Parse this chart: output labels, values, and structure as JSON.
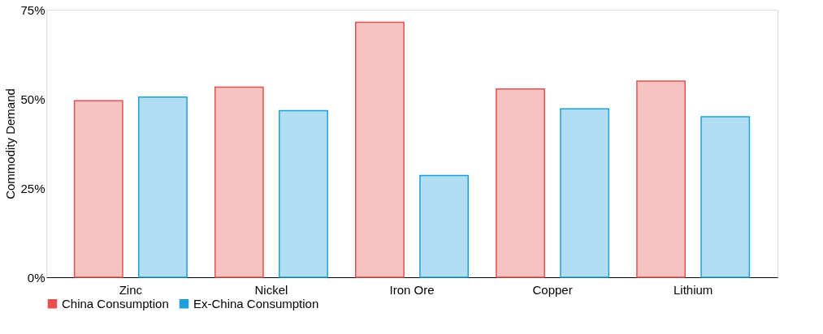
{
  "chart_data": {
    "type": "bar",
    "ylabel": "Commodity Demand",
    "categories": [
      "Zinc",
      "Nickel",
      "Iron Ore",
      "Copper",
      "Lithium"
    ],
    "series": [
      {
        "name": "China Consumption",
        "color": "#e8504f",
        "values": [
          49.5,
          53.3,
          71.5,
          52.8,
          55.0
        ]
      },
      {
        "name": "Ex-China Consumption",
        "color": "#1fa0dc",
        "values": [
          50.5,
          46.7,
          28.5,
          47.2,
          45.0
        ]
      }
    ],
    "ylim": [
      0,
      75
    ],
    "yticks": [
      {
        "value": 0,
        "label": "0%"
      },
      {
        "value": 25,
        "label": "25%"
      },
      {
        "value": 50,
        "label": "50%"
      },
      {
        "value": 75,
        "label": "75%"
      }
    ],
    "grid": false,
    "legend": "bottom"
  }
}
